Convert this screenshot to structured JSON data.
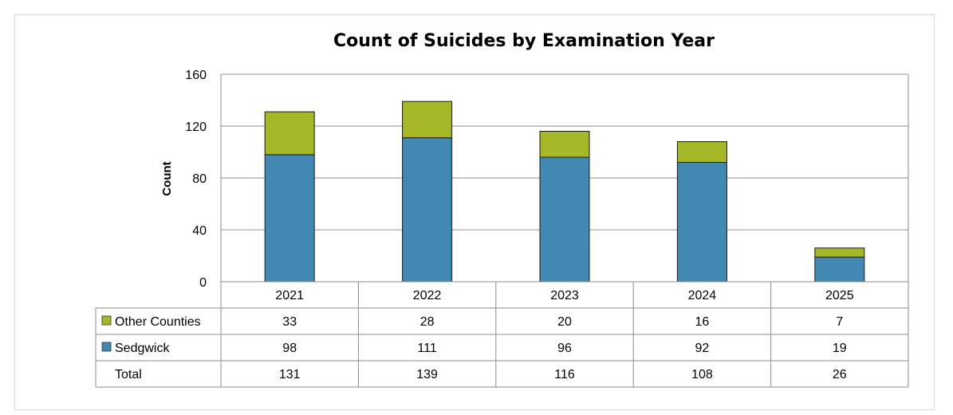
{
  "chart_data": {
    "type": "bar",
    "stacked": true,
    "title": "Count of Suicides by Examination Year",
    "xlabel": "",
    "ylabel": "Count",
    "ylim": [
      0,
      160
    ],
    "yticks": [
      0,
      40,
      80,
      120,
      160
    ],
    "grid": true,
    "categories": [
      "2021",
      "2022",
      "2023",
      "2024",
      "2025"
    ],
    "series": [
      {
        "name": "Sedgwick",
        "values": [
          98,
          111,
          96,
          92,
          19
        ],
        "color": "#4189b3"
      },
      {
        "name": "Other Counties",
        "values": [
          33,
          28,
          20,
          16,
          7
        ],
        "color": "#a6b727"
      }
    ],
    "data_table": {
      "rows": [
        {
          "label": "Other Counties",
          "series": "Other Counties",
          "values": [
            "33",
            "28",
            "20",
            "16",
            "7"
          ]
        },
        {
          "label": "Sedgwick",
          "series": "Sedgwick",
          "values": [
            "98",
            "111",
            "96",
            "92",
            "19"
          ]
        },
        {
          "label": "Total",
          "values": [
            "131",
            "139",
            "116",
            "108",
            "26"
          ]
        }
      ]
    }
  }
}
